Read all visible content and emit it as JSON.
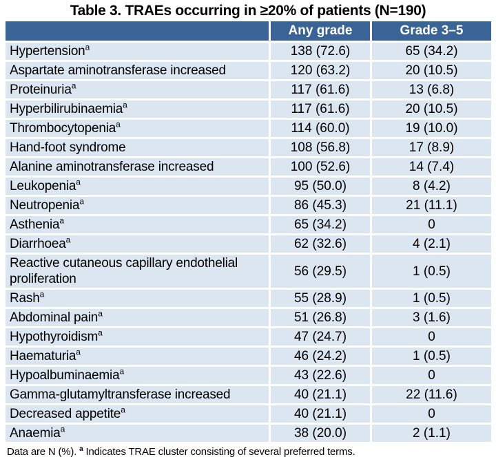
{
  "title": "Table 3. TRAEs occurring in ≥20% of patients (N=190)",
  "colors": {
    "header_bg": "#3A6496",
    "header_text": "#FFFFFF",
    "row_bg": "#DCE6F1",
    "body_text": "#000000",
    "page_bg": "#FFFFFF"
  },
  "table": {
    "columns": [
      "",
      "Any grade",
      "Grade 3–5"
    ],
    "rows": [
      {
        "term": "Hypertension",
        "sup": "a",
        "any_grade": "138 (72.6)",
        "grade_3_5": "65 (34.2)"
      },
      {
        "term": "Aspartate aminotransferase increased",
        "sup": "",
        "any_grade": "120 (63.2)",
        "grade_3_5": "20 (10.5)"
      },
      {
        "term": "Proteinuria",
        "sup": "a",
        "any_grade": "117 (61.6)",
        "grade_3_5": "13 (6.8)"
      },
      {
        "term": "Hyperbilirubinaemia",
        "sup": "a",
        "any_grade": "117 (61.6)",
        "grade_3_5": "20 (10.5)"
      },
      {
        "term": "Thrombocytopenia",
        "sup": "a",
        "any_grade": "114 (60.0)",
        "grade_3_5": "19 (10.0)"
      },
      {
        "term": "Hand-foot syndrome",
        "sup": "",
        "any_grade": "108 (56.8)",
        "grade_3_5": "17 (8.9)"
      },
      {
        "term": "Alanine aminotransferase increased",
        "sup": "",
        "any_grade": "100 (52.6)",
        "grade_3_5": "14 (7.4)"
      },
      {
        "term": "Leukopenia",
        "sup": "a",
        "any_grade": "95 (50.0)",
        "grade_3_5": "8 (4.2)"
      },
      {
        "term": "Neutropenia",
        "sup": "a",
        "any_grade": "86 (45.3)",
        "grade_3_5": "21 (11.1)"
      },
      {
        "term": "Asthenia",
        "sup": "a",
        "any_grade": "65 (34.2)",
        "grade_3_5": "0"
      },
      {
        "term": "Diarrhoea",
        "sup": "a",
        "any_grade": "62 (32.6)",
        "grade_3_5": "4 (2.1)"
      },
      {
        "term": "Reactive cutaneous capillary endothelial proliferation",
        "sup": "",
        "any_grade": "56 (29.5)",
        "grade_3_5": "1 (0.5)"
      },
      {
        "term": "Rash",
        "sup": "a",
        "any_grade": "55 (28.9)",
        "grade_3_5": "1 (0.5)"
      },
      {
        "term": "Abdominal pain",
        "sup": "a",
        "any_grade": "51 (26.8)",
        "grade_3_5": "3 (1.6)"
      },
      {
        "term": "Hypothyroidism",
        "sup": "a",
        "any_grade": "47 (24.7)",
        "grade_3_5": "0"
      },
      {
        "term": "Haematuria",
        "sup": "a",
        "any_grade": "46 (24.2)",
        "grade_3_5": "1 (0.5)"
      },
      {
        "term": "Hypoalbuminaemia",
        "sup": "a",
        "any_grade": "43 (22.6)",
        "grade_3_5": "0"
      },
      {
        "term": "Gamma-glutamyltransferase increased",
        "sup": "",
        "any_grade": "40 (21.1)",
        "grade_3_5": "22 (11.6)"
      },
      {
        "term": "Decreased appetite",
        "sup": "a",
        "any_grade": "40 (21.1)",
        "grade_3_5": "0"
      },
      {
        "term": "Anaemia",
        "sup": "a",
        "any_grade": "38 (20.0)",
        "grade_3_5": "2 (1.1)"
      }
    ]
  },
  "footnote": {
    "prefix": "Data are N (%). ",
    "sup": "a",
    "text": " Indicates TRAE cluster consisting of several preferred terms."
  }
}
